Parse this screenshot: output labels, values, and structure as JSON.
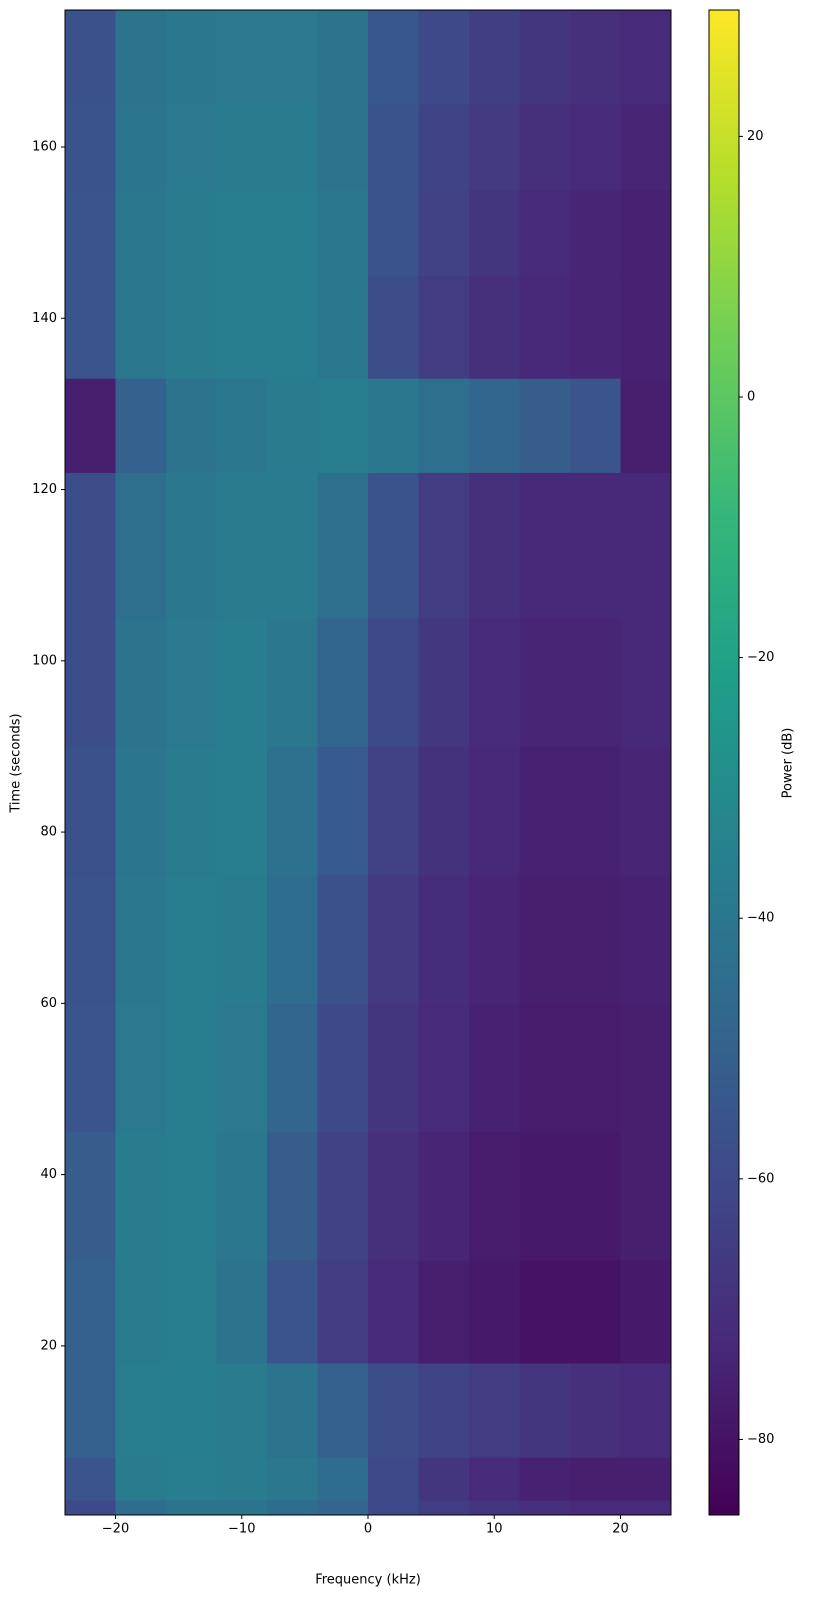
{
  "chart_data": {
    "type": "heatmap",
    "xlabel": "Frequency (kHz)",
    "ylabel": "Time (seconds)",
    "colorbar_label": "Power (dB)",
    "colormap": "viridis",
    "x_bins": [
      -24,
      -20,
      -16,
      -12,
      -8,
      -4,
      0,
      4,
      8,
      12,
      16,
      20,
      24
    ],
    "y_bins": [
      0.25,
      2,
      7,
      18,
      30,
      45,
      60,
      75,
      90,
      105,
      122,
      133,
      145,
      155,
      165,
      176
    ],
    "values": [
      [
        -60,
        -45,
        -42,
        -42,
        -45,
        -48,
        -60,
        -65,
        -68,
        -70,
        -72,
        -72
      ],
      [
        -55,
        -38,
        -37,
        -38,
        -40,
        -45,
        -60,
        -68,
        -72,
        -75,
        -76,
        -76
      ],
      [
        -50,
        -37,
        -36,
        -38,
        -42,
        -50,
        -58,
        -62,
        -65,
        -68,
        -70,
        -72
      ],
      [
        -50,
        -38,
        -37,
        -42,
        -55,
        -65,
        -72,
        -76,
        -78,
        -80,
        -80,
        -78
      ],
      [
        -52,
        -38,
        -37,
        -40,
        -52,
        -63,
        -70,
        -74,
        -77,
        -78,
        -78,
        -76
      ],
      [
        -55,
        -39,
        -37,
        -39,
        -48,
        -60,
        -68,
        -72,
        -75,
        -77,
        -77,
        -76
      ],
      [
        -56,
        -40,
        -37,
        -38,
        -45,
        -57,
        -66,
        -71,
        -74,
        -76,
        -76,
        -75
      ],
      [
        -57,
        -41,
        -38,
        -37,
        -43,
        -53,
        -63,
        -69,
        -73,
        -75,
        -75,
        -74
      ],
      [
        -58,
        -42,
        -39,
        -37,
        -40,
        -48,
        -60,
        -67,
        -72,
        -74,
        -74,
        -73
      ],
      [
        -58,
        -44,
        -40,
        -38,
        -38,
        -44,
        -56,
        -65,
        -70,
        -73,
        -73,
        -73
      ],
      [
        -76,
        -50,
        -42,
        -40,
        -38,
        -37,
        -40,
        -44,
        -48,
        -52,
        -55,
        -76
      ],
      [
        -55,
        -40,
        -38,
        -37,
        -37,
        -40,
        -58,
        -65,
        -70,
        -73,
        -74,
        -75
      ],
      [
        -55,
        -40,
        -38,
        -37,
        -37,
        -40,
        -56,
        -63,
        -68,
        -72,
        -74,
        -75
      ],
      [
        -56,
        -41,
        -39,
        -38,
        -38,
        -42,
        -56,
        -62,
        -66,
        -70,
        -72,
        -74
      ],
      [
        -57,
        -42,
        -40,
        -39,
        -39,
        -42,
        -54,
        -60,
        -64,
        -68,
        -70,
        -72
      ]
    ],
    "xlim": [
      -24,
      24
    ],
    "xticks": [
      {
        "value": -20,
        "label": "−20"
      },
      {
        "value": -10,
        "label": "−10"
      },
      0,
      10,
      20
    ],
    "ylim": [
      0.25,
      176
    ],
    "yticks": [
      20,
      40,
      60,
      80,
      100,
      120,
      140,
      160
    ],
    "clim": [
      -85.8,
      29.7
    ],
    "cticks": [
      {
        "value": -80,
        "label": "−80"
      },
      {
        "value": -60,
        "label": "−60"
      },
      {
        "value": -40,
        "label": "−40"
      },
      {
        "value": -20,
        "label": "−20"
      },
      0,
      20
    ]
  }
}
